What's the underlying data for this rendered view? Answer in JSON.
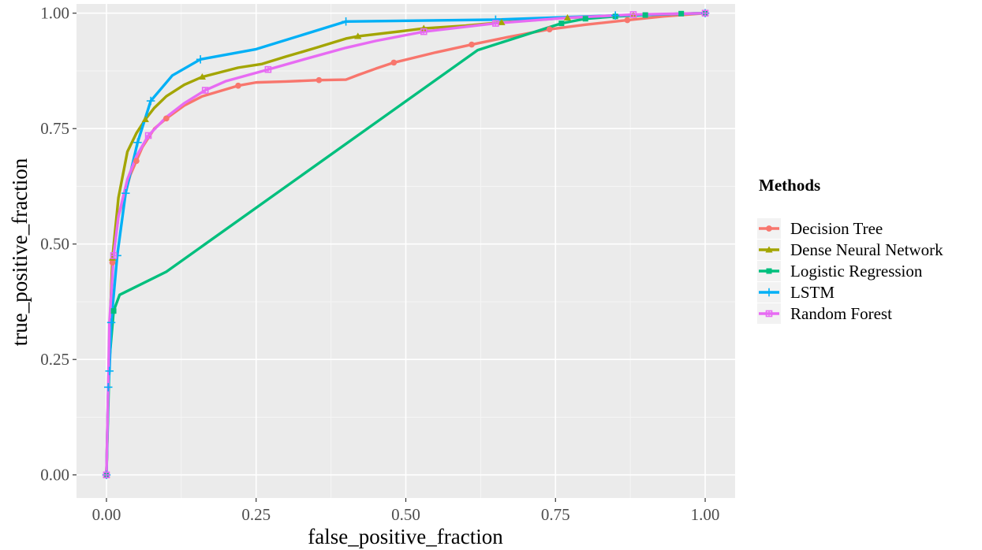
{
  "chart_data": {
    "type": "line",
    "title": "",
    "xlabel": "false_positive_fraction",
    "ylabel": "true_positive_fraction",
    "xlim": [
      -0.05,
      1.05
    ],
    "ylim": [
      -0.05,
      1.02
    ],
    "x_ticks": [
      0.0,
      0.25,
      0.5,
      0.75,
      1.0
    ],
    "x_tick_labels": [
      "0.00",
      "0.25",
      "0.50",
      "0.75",
      "1.00"
    ],
    "y_ticks": [
      0.0,
      0.25,
      0.5,
      0.75,
      1.0
    ],
    "y_tick_labels": [
      "0.00",
      "0.25",
      "0.50",
      "0.75",
      "1.00"
    ],
    "grid": true,
    "background": "#ebebeb",
    "legend": {
      "title": "Methods",
      "position": "right"
    },
    "series": [
      {
        "name": "Decision Tree",
        "color": "#F8766D",
        "marker": "circle",
        "points": [
          [
            0,
            0
          ],
          [
            0.005,
            0.3
          ],
          [
            0.01,
            0.46
          ],
          [
            0.02,
            0.56
          ],
          [
            0.04,
            0.65
          ],
          [
            0.06,
            0.71
          ],
          [
            0.08,
            0.75
          ],
          [
            0.1,
            0.772
          ],
          [
            0.13,
            0.8
          ],
          [
            0.16,
            0.82
          ],
          [
            0.22,
            0.843
          ],
          [
            0.25,
            0.85
          ],
          [
            0.3,
            0.852
          ],
          [
            0.355,
            0.855
          ],
          [
            0.4,
            0.856
          ],
          [
            0.42,
            0.866
          ],
          [
            0.45,
            0.88
          ],
          [
            0.48,
            0.893
          ],
          [
            0.55,
            0.915
          ],
          [
            0.61,
            0.932
          ],
          [
            0.67,
            0.948
          ],
          [
            0.74,
            0.965
          ],
          [
            0.8,
            0.975
          ],
          [
            0.87,
            0.985
          ],
          [
            0.93,
            0.993
          ],
          [
            1,
            1
          ]
        ],
        "markers": [
          [
            0,
            0
          ],
          [
            0.01,
            0.46
          ],
          [
            0.05,
            0.68
          ],
          [
            0.1,
            0.772
          ],
          [
            0.22,
            0.843
          ],
          [
            0.355,
            0.855
          ],
          [
            0.48,
            0.893
          ],
          [
            0.61,
            0.932
          ],
          [
            0.74,
            0.965
          ],
          [
            0.87,
            0.985
          ],
          [
            1,
            1
          ]
        ]
      },
      {
        "name": "Dense Neural Network",
        "color": "#A3A500",
        "marker": "triangle",
        "points": [
          [
            0,
            0
          ],
          [
            0.005,
            0.3
          ],
          [
            0.01,
            0.47
          ],
          [
            0.02,
            0.6
          ],
          [
            0.035,
            0.7
          ],
          [
            0.05,
            0.74
          ],
          [
            0.065,
            0.77
          ],
          [
            0.08,
            0.795
          ],
          [
            0.1,
            0.82
          ],
          [
            0.13,
            0.845
          ],
          [
            0.16,
            0.862
          ],
          [
            0.22,
            0.882
          ],
          [
            0.26,
            0.89
          ],
          [
            0.3,
            0.906
          ],
          [
            0.35,
            0.925
          ],
          [
            0.4,
            0.945
          ],
          [
            0.42,
            0.95
          ],
          [
            0.5,
            0.962
          ],
          [
            0.53,
            0.967
          ],
          [
            0.6,
            0.973
          ],
          [
            0.66,
            0.98
          ],
          [
            0.77,
            0.99
          ],
          [
            0.88,
            0.996
          ],
          [
            1,
            1
          ]
        ],
        "markers": [
          [
            0,
            0
          ],
          [
            0.01,
            0.47
          ],
          [
            0.065,
            0.77
          ],
          [
            0.16,
            0.862
          ],
          [
            0.42,
            0.95
          ],
          [
            0.53,
            0.967
          ],
          [
            0.66,
            0.98
          ],
          [
            0.77,
            0.99
          ],
          [
            0.88,
            0.996
          ],
          [
            1,
            1
          ]
        ]
      },
      {
        "name": "Logistic Regression",
        "color": "#00BF7D",
        "marker": "square",
        "points": [
          [
            0,
            0
          ],
          [
            0.005,
            0.25
          ],
          [
            0.012,
            0.355
          ],
          [
            0.022,
            0.39
          ],
          [
            0.1,
            0.44
          ],
          [
            0.62,
            0.92
          ],
          [
            0.76,
            0.978
          ],
          [
            0.8,
            0.988
          ],
          [
            0.85,
            0.993
          ],
          [
            0.9,
            0.996
          ],
          [
            0.96,
            0.999
          ],
          [
            1,
            1
          ]
        ],
        "markers": [
          [
            0,
            0
          ],
          [
            0.012,
            0.355
          ],
          [
            0.76,
            0.978
          ],
          [
            0.8,
            0.988
          ],
          [
            0.85,
            0.993
          ],
          [
            0.9,
            0.996
          ],
          [
            0.96,
            0.999
          ],
          [
            1,
            1
          ]
        ]
      },
      {
        "name": "LSTM",
        "color": "#00B0F6",
        "marker": "plus",
        "points": [
          [
            0,
            0
          ],
          [
            0.003,
            0.19
          ],
          [
            0.005,
            0.225
          ],
          [
            0.008,
            0.33
          ],
          [
            0.018,
            0.475
          ],
          [
            0.032,
            0.61
          ],
          [
            0.052,
            0.72
          ],
          [
            0.074,
            0.81
          ],
          [
            0.11,
            0.865
          ],
          [
            0.157,
            0.9
          ],
          [
            0.25,
            0.922
          ],
          [
            0.4,
            0.982
          ],
          [
            0.65,
            0.986
          ],
          [
            0.85,
            0.995
          ],
          [
            1,
            1
          ]
        ],
        "markers": [
          [
            0,
            0
          ],
          [
            0.003,
            0.19
          ],
          [
            0.005,
            0.225
          ],
          [
            0.008,
            0.33
          ],
          [
            0.018,
            0.475
          ],
          [
            0.032,
            0.61
          ],
          [
            0.052,
            0.72
          ],
          [
            0.074,
            0.81
          ],
          [
            0.157,
            0.9
          ],
          [
            0.4,
            0.982
          ],
          [
            0.65,
            0.986
          ],
          [
            0.85,
            0.995
          ],
          [
            1,
            1
          ]
        ]
      },
      {
        "name": "Random Forest",
        "color": "#E76BF3",
        "marker": "square-cross",
        "points": [
          [
            0,
            0
          ],
          [
            0.005,
            0.33
          ],
          [
            0.012,
            0.475
          ],
          [
            0.02,
            0.56
          ],
          [
            0.035,
            0.64
          ],
          [
            0.05,
            0.69
          ],
          [
            0.07,
            0.735
          ],
          [
            0.1,
            0.775
          ],
          [
            0.13,
            0.805
          ],
          [
            0.165,
            0.833
          ],
          [
            0.2,
            0.853
          ],
          [
            0.27,
            0.878
          ],
          [
            0.33,
            0.9
          ],
          [
            0.4,
            0.925
          ],
          [
            0.45,
            0.94
          ],
          [
            0.53,
            0.96
          ],
          [
            0.65,
            0.978
          ],
          [
            0.77,
            0.99
          ],
          [
            0.88,
            0.997
          ],
          [
            1,
            1
          ]
        ],
        "markers": [
          [
            0,
            0
          ],
          [
            0.012,
            0.475
          ],
          [
            0.07,
            0.735
          ],
          [
            0.165,
            0.833
          ],
          [
            0.27,
            0.878
          ],
          [
            0.53,
            0.96
          ],
          [
            0.65,
            0.978
          ],
          [
            0.88,
            0.997
          ],
          [
            1,
            1
          ]
        ]
      }
    ]
  }
}
